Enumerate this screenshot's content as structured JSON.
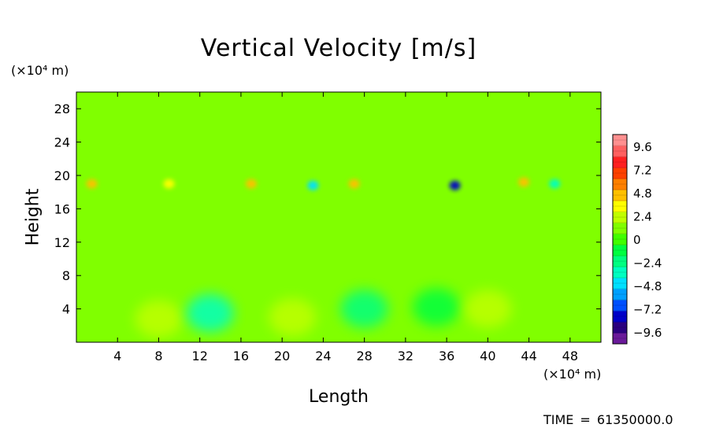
{
  "chart_data": {
    "type": "heatmap",
    "title": "Vertical Velocity [m/s]",
    "xlabel": "Length",
    "ylabel": "Height",
    "x_unit": "(×10⁴ m)",
    "y_unit": "(×10⁴ m)",
    "xlim": [
      0,
      51
    ],
    "ylim": [
      0,
      30
    ],
    "x_ticks": [
      "4",
      "8",
      "12",
      "16",
      "20",
      "24",
      "28",
      "32",
      "36",
      "40",
      "44",
      "48"
    ],
    "y_ticks": [
      "4",
      "8",
      "12",
      "16",
      "20",
      "24",
      "28"
    ],
    "colorbar": {
      "labels": [
        "9.6",
        "7.2",
        "4.8",
        "2.4",
        "0",
        "−2.4",
        "−4.8",
        "−7.2",
        "−9.6"
      ],
      "min": -10.8,
      "max": 10.8,
      "colors": [
        "#6a1a9a",
        "#2a0080",
        "#0000c8",
        "#0050ff",
        "#00a0ff",
        "#00e0ff",
        "#00ffc0",
        "#00ff80",
        "#00ff40",
        "#40ff00",
        "#80ff00",
        "#c0ff00",
        "#ffff00",
        "#ffc000",
        "#ff8000",
        "#ff4000",
        "#ff2020",
        "#ff6060",
        "#ff9090"
      ]
    },
    "background_value": 0.8,
    "features": [
      {
        "x": 8,
        "y": 2.8,
        "value": 2.0
      },
      {
        "x": 13,
        "y": 3.5,
        "value": -3.2
      },
      {
        "x": 21,
        "y": 3.0,
        "value": 1.8
      },
      {
        "x": 28,
        "y": 4.0,
        "value": -2.5
      },
      {
        "x": 35,
        "y": 4.2,
        "value": -1.5
      },
      {
        "x": 40,
        "y": 4.0,
        "value": 2.0
      },
      {
        "x": 1.5,
        "y": 19.0,
        "value": 4.5
      },
      {
        "x": 9,
        "y": 19.0,
        "value": 3.8
      },
      {
        "x": 17,
        "y": 19.0,
        "value": 4.0
      },
      {
        "x": 23,
        "y": 18.8,
        "value": -4.0
      },
      {
        "x": 27,
        "y": 19.0,
        "value": 4.5
      },
      {
        "x": 36.8,
        "y": 18.8,
        "value": -7.5
      },
      {
        "x": 43.5,
        "y": 19.2,
        "value": 4.8
      },
      {
        "x": 46.5,
        "y": 19.0,
        "value": -3.0
      }
    ]
  },
  "footer": {
    "time_label": "TIME",
    "time_equals": "=",
    "time_value": "61350000.0"
  }
}
